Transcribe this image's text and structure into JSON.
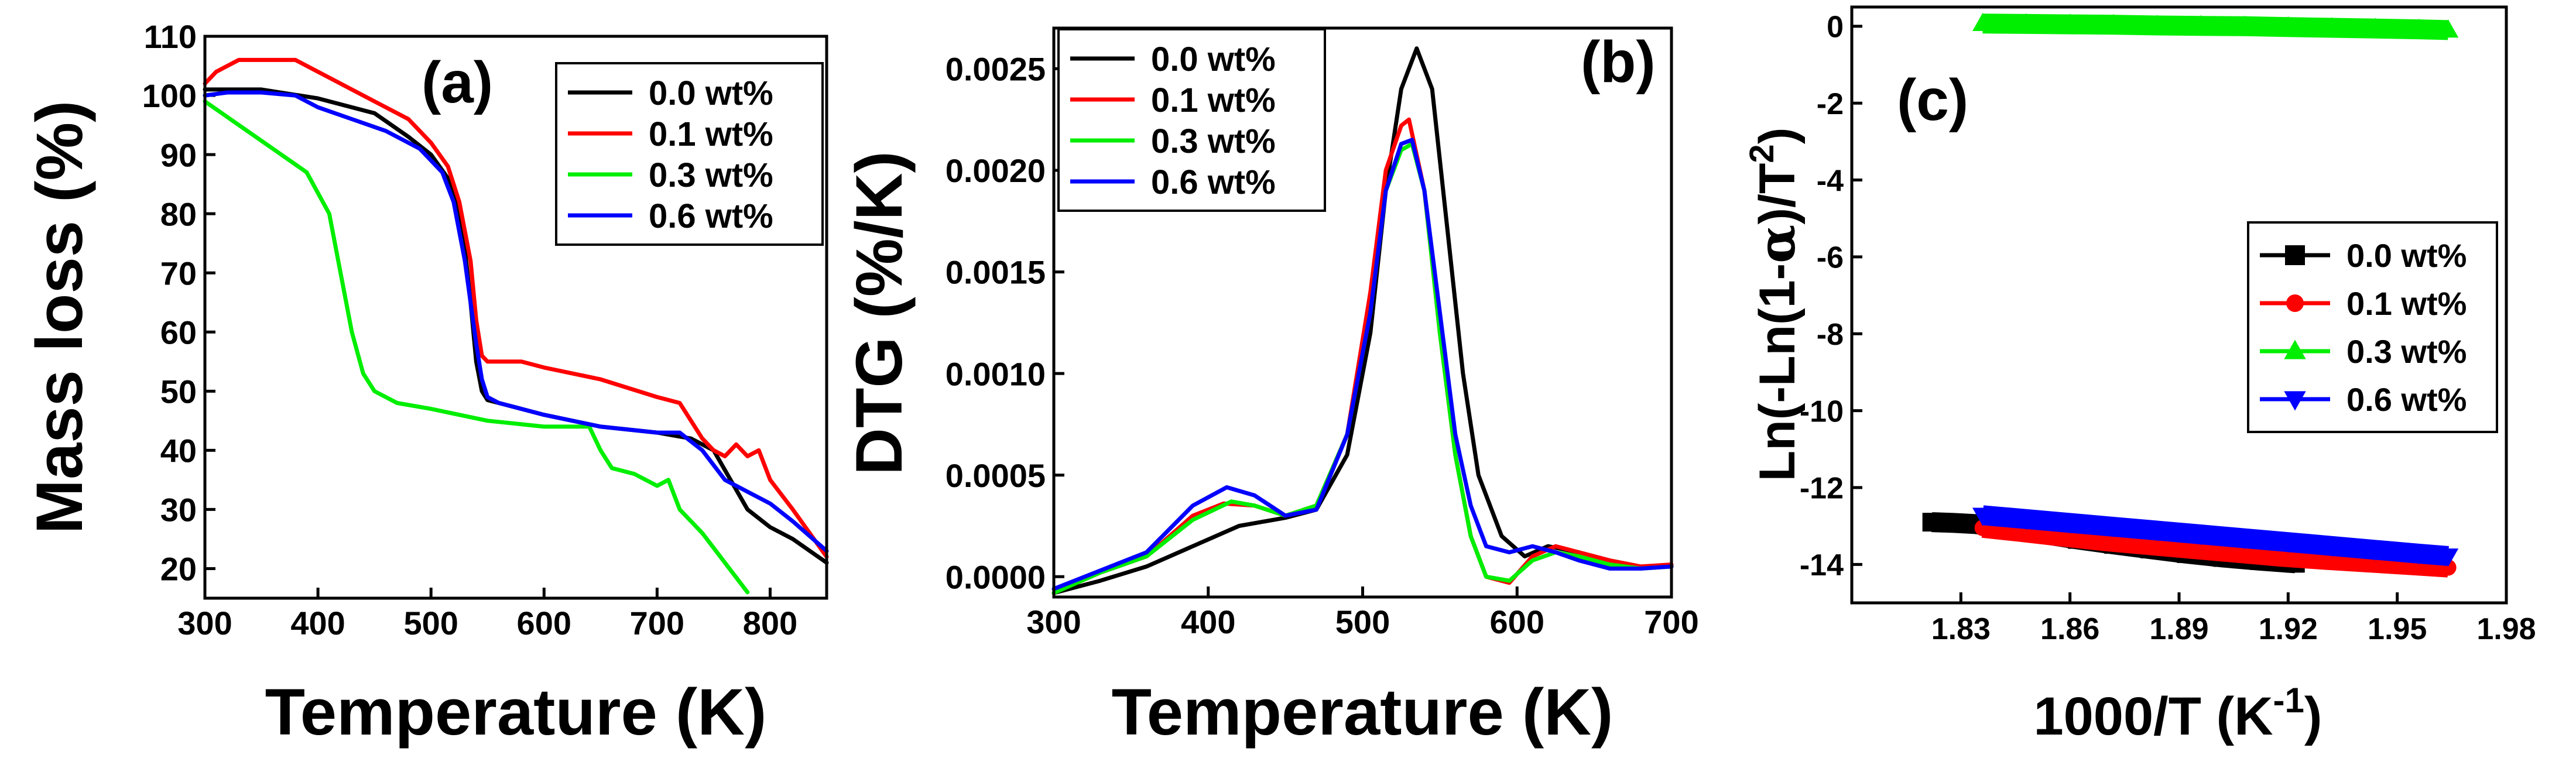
{
  "series_colors": [
    "#000000",
    "#ff0000",
    "#00ee00",
    "#0000ff"
  ],
  "chart_data": [
    {
      "type": "line",
      "panel_label": "(a)",
      "xlabel": "Temperature (K)",
      "ylabel": "Mass loss (%)",
      "xlim": [
        300,
        850
      ],
      "ylim": [
        15,
        110
      ],
      "xticks": [
        300,
        400,
        500,
        600,
        700,
        800
      ],
      "yticks": [
        20,
        30,
        40,
        50,
        60,
        70,
        80,
        90,
        100,
        110
      ],
      "xticklabels": [
        "300",
        "400",
        "500",
        "600",
        "700",
        "800"
      ],
      "yticklabels": [
        "20",
        "30",
        "40",
        "50",
        "60",
        "70",
        "80",
        "90",
        "100",
        "110"
      ],
      "legend_position": "top-right",
      "series": [
        {
          "name": "0.0 wt%",
          "x": [
            300,
            320,
            350,
            400,
            450,
            480,
            500,
            515,
            525,
            530,
            535,
            540,
            545,
            550,
            560,
            580,
            600,
            650,
            700,
            730,
            750,
            780,
            800,
            820,
            850
          ],
          "y": [
            101,
            101,
            101,
            99.5,
            97,
            93,
            90,
            86,
            80,
            74,
            65,
            55,
            50,
            48.5,
            48,
            47,
            46,
            44,
            43,
            42,
            40,
            30,
            27,
            25,
            21
          ]
        },
        {
          "name": "0.1 wt%",
          "x": [
            300,
            310,
            330,
            350,
            380,
            400,
            450,
            480,
            500,
            515,
            525,
            535,
            540,
            545,
            550,
            560,
            580,
            600,
            650,
            700,
            720,
            740,
            750,
            760,
            770,
            780,
            790,
            800,
            820,
            850
          ],
          "y": [
            102,
            104,
            106,
            106,
            106,
            104,
            99,
            96,
            92,
            88,
            82,
            72,
            62,
            56,
            55,
            55,
            55,
            54,
            52,
            49,
            48,
            42,
            40,
            39,
            41,
            39,
            40,
            35,
            30,
            22
          ]
        },
        {
          "name": "0.3 wt%",
          "x": [
            300,
            330,
            360,
            390,
            410,
            420,
            430,
            440,
            450,
            470,
            500,
            550,
            600,
            640,
            650,
            660,
            680,
            700,
            710,
            720,
            740,
            760,
            780
          ],
          "y": [
            99,
            95,
            91,
            87,
            80,
            70,
            60,
            53,
            50,
            48,
            47,
            45,
            44,
            44,
            40,
            37,
            36,
            34,
            35,
            30,
            26,
            21,
            16
          ]
        },
        {
          "name": "0.6 wt%",
          "x": [
            300,
            320,
            350,
            380,
            400,
            430,
            460,
            490,
            510,
            520,
            530,
            540,
            545,
            550,
            560,
            580,
            600,
            650,
            700,
            720,
            740,
            760,
            780,
            800,
            820,
            850
          ],
          "y": [
            100,
            100.5,
            100.5,
            100,
            98,
            96,
            94,
            91,
            87,
            82,
            72,
            58,
            52,
            49,
            48,
            47,
            46,
            44,
            43,
            43,
            40,
            35,
            33,
            31,
            28,
            23
          ]
        }
      ]
    },
    {
      "type": "line",
      "panel_label": "(b)",
      "xlabel": "Temperature (K)",
      "ylabel": "DTG (%/K)",
      "xlim": [
        300,
        700
      ],
      "ylim": [
        -0.0001,
        0.0027
      ],
      "xticks": [
        300,
        400,
        500,
        600,
        700
      ],
      "yticks": [
        0,
        0.0005,
        0.001,
        0.0015,
        0.002,
        0.0025
      ],
      "xticklabels": [
        "300",
        "400",
        "500",
        "600",
        "700"
      ],
      "yticklabels": [
        "0.0000",
        "0.0005",
        "0.0010",
        "0.0015",
        "0.0020",
        "0.0025"
      ],
      "legend_position": "top-left",
      "series": [
        {
          "name": "0.0 wt%",
          "x": [
            300,
            330,
            360,
            390,
            420,
            450,
            470,
            490,
            505,
            515,
            525,
            535,
            545,
            555,
            565,
            575,
            590,
            605,
            620,
            640,
            660,
            680,
            700
          ],
          "y": [
            -8e-05,
            -2e-05,
            5e-05,
            0.00015,
            0.00025,
            0.00029,
            0.00033,
            0.0006,
            0.0012,
            0.0019,
            0.0024,
            0.0026,
            0.0024,
            0.0017,
            0.001,
            0.0005,
            0.0002,
            0.0001,
            0.00015,
            0.00012,
            8e-05,
            5e-05,
            5e-05
          ]
        },
        {
          "name": "0.1 wt%",
          "x": [
            300,
            330,
            360,
            390,
            410,
            430,
            450,
            470,
            490,
            505,
            515,
            525,
            530,
            540,
            550,
            560,
            570,
            580,
            595,
            610,
            625,
            640,
            660,
            680,
            700
          ],
          "y": [
            -8e-05,
            2e-05,
            0.0001,
            0.0003,
            0.00036,
            0.00035,
            0.0003,
            0.00035,
            0.0007,
            0.0014,
            0.002,
            0.00222,
            0.00225,
            0.0019,
            0.0012,
            0.0006,
            0.0002,
            0,
            -3e-05,
            0.0001,
            0.00015,
            0.00012,
            8e-05,
            5e-05,
            6e-05
          ]
        },
        {
          "name": "0.3 wt%",
          "x": [
            300,
            330,
            360,
            390,
            415,
            430,
            450,
            470,
            490,
            505,
            515,
            525,
            532,
            540,
            550,
            560,
            570,
            580,
            595,
            610,
            625,
            640,
            660,
            680,
            700
          ],
          "y": [
            -8e-05,
            2e-05,
            0.0001,
            0.00028,
            0.00037,
            0.00035,
            0.0003,
            0.00035,
            0.0007,
            0.0013,
            0.0019,
            0.0021,
            0.00213,
            0.0019,
            0.0012,
            0.0006,
            0.0002,
            0,
            -2e-05,
            8e-05,
            0.00012,
            0.0001,
            6e-05,
            4e-05,
            5e-05
          ]
        },
        {
          "name": "0.6 wt%",
          "x": [
            300,
            330,
            360,
            390,
            412,
            430,
            450,
            470,
            490,
            505,
            515,
            525,
            532,
            540,
            550,
            560,
            570,
            580,
            595,
            610,
            625,
            640,
            660,
            680,
            700
          ],
          "y": [
            -6e-05,
            3e-05,
            0.00012,
            0.00035,
            0.00044,
            0.0004,
            0.0003,
            0.00033,
            0.0007,
            0.0013,
            0.0019,
            0.00213,
            0.00215,
            0.0019,
            0.0013,
            0.0007,
            0.00035,
            0.00015,
            0.00012,
            0.00015,
            0.00012,
            8e-05,
            4e-05,
            4e-05,
            5e-05
          ]
        }
      ]
    },
    {
      "type": "scatter",
      "panel_label": "(c)",
      "xlabel": "1000/T (K-1)",
      "ylabel": "Ln(-Ln(1-α)/T2)",
      "xlim": [
        1.8,
        1.98
      ],
      "ylim": [
        -15,
        0.5
      ],
      "xticks": [
        1.83,
        1.86,
        1.89,
        1.92,
        1.95,
        1.98
      ],
      "yticks": [
        0,
        -2,
        -4,
        -6,
        -8,
        -10,
        -12,
        -14
      ],
      "xticklabels": [
        "1.83",
        "1.86",
        "1.89",
        "1.92",
        "1.95",
        "1.98"
      ],
      "yticklabels": [
        "0",
        "-2",
        "-4",
        "-6",
        "-8",
        "-10",
        "-12",
        "-14"
      ],
      "legend_position": "middle-right",
      "series": [
        {
          "name": "0.0 wt%",
          "marker": "square",
          "x": [
            1.822,
            1.828,
            1.834,
            1.842,
            1.852,
            1.862,
            1.872,
            1.882,
            1.892,
            1.902,
            1.912,
            1.922
          ],
          "y": [
            -12.9,
            -12.92,
            -12.95,
            -13.05,
            -13.2,
            -13.35,
            -13.48,
            -13.6,
            -13.72,
            -13.82,
            -13.9,
            -13.97
          ]
        },
        {
          "name": "0.1 wt%",
          "marker": "circle",
          "x": [
            1.836,
            1.846,
            1.858,
            1.87,
            1.882,
            1.894,
            1.906,
            1.918,
            1.93,
            1.942,
            1.954,
            1.964
          ],
          "y": [
            -13.05,
            -13.15,
            -13.28,
            -13.4,
            -13.5,
            -13.6,
            -13.7,
            -13.8,
            -13.88,
            -13.95,
            -14.02,
            -14.08
          ]
        },
        {
          "name": "0.3 wt%",
          "marker": "triangle-up",
          "x": [
            1.836,
            1.848,
            1.86,
            1.872,
            1.884,
            1.896,
            1.908,
            1.92,
            1.932,
            1.944,
            1.956,
            1.964
          ],
          "y": [
            0.07,
            0.06,
            0.05,
            0.04,
            0.02,
            0.01,
            0,
            -0.02,
            -0.04,
            -0.06,
            -0.08,
            -0.1
          ]
        },
        {
          "name": "0.6 wt%",
          "marker": "triangle-down",
          "x": [
            1.836,
            1.848,
            1.86,
            1.872,
            1.884,
            1.896,
            1.908,
            1.92,
            1.932,
            1.944,
            1.956,
            1.964
          ],
          "y": [
            -12.72,
            -12.82,
            -12.92,
            -13.02,
            -13.12,
            -13.22,
            -13.32,
            -13.42,
            -13.52,
            -13.62,
            -13.72,
            -13.78
          ]
        }
      ]
    }
  ]
}
